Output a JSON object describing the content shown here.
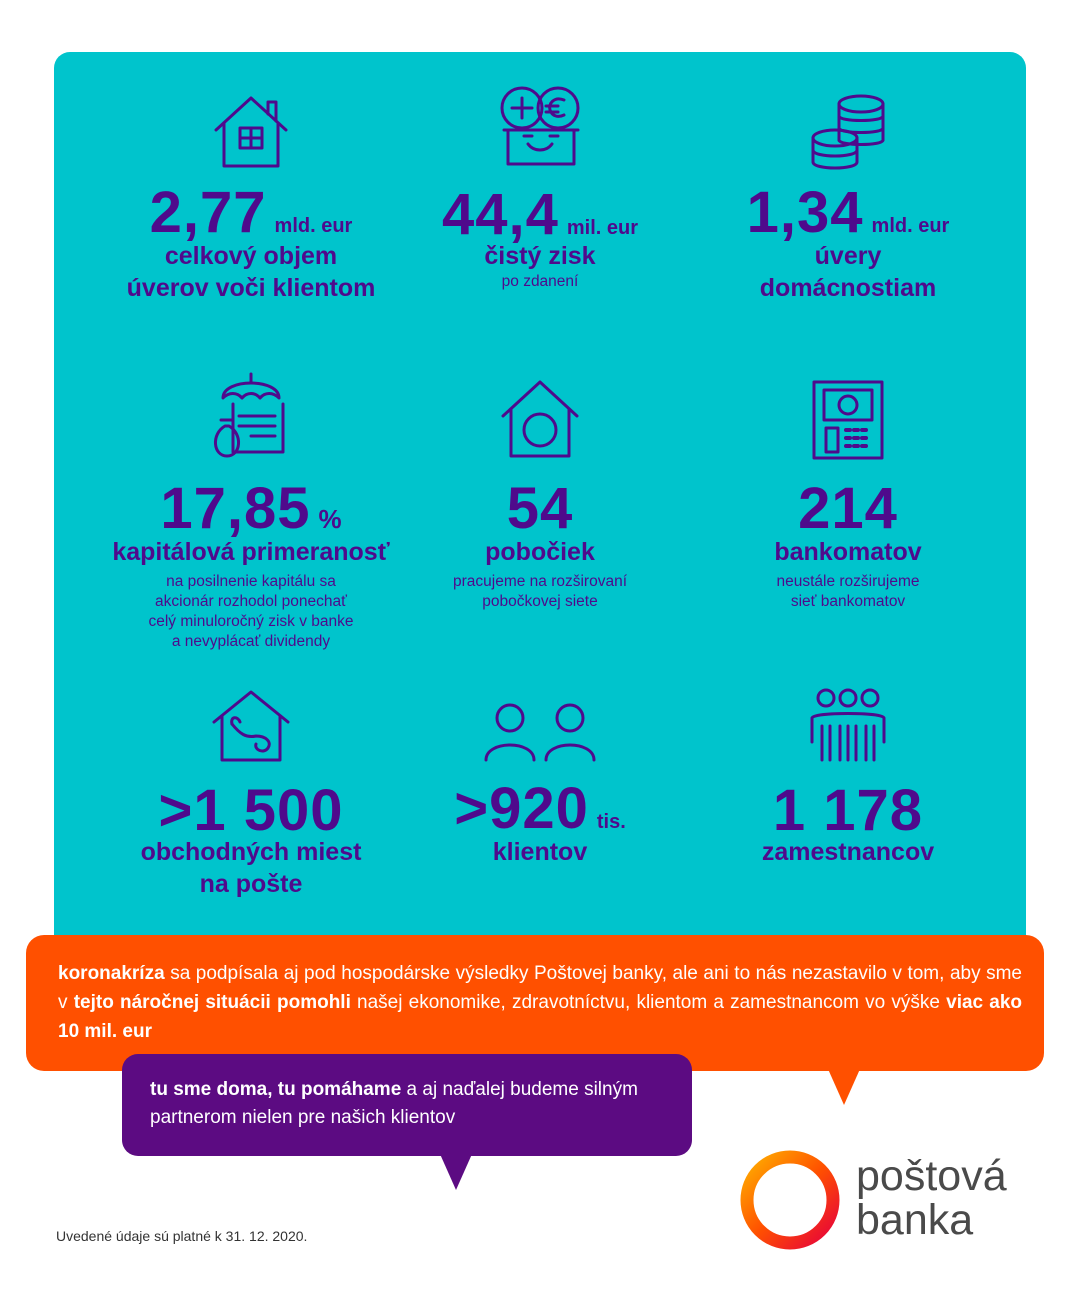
{
  "colors": {
    "panel": "#00c4cc",
    "accent": "#4f0a8c",
    "orange": "#ff5000",
    "purple": "#5c0b82"
  },
  "stats": [
    {
      "icon": "house-icon",
      "number": "2,77",
      "unit": "mld. eur",
      "label": [
        "celkový objem",
        "úverov voči klientom"
      ],
      "sub": []
    },
    {
      "icon": "money-box-icon",
      "number": "44,4",
      "unit": "mil. eur",
      "label": [
        "čistý zisk"
      ],
      "sub": [
        "po zdanení"
      ]
    },
    {
      "icon": "coins-icon",
      "number": "1,34",
      "unit": "mld. eur",
      "label": [
        "úvery",
        "domácnostiam"
      ],
      "sub": []
    },
    {
      "icon": "umbrella-document-icon",
      "number": "17,85",
      "unit": "%",
      "label": [
        "kapitálová primeranosť"
      ],
      "sub": [
        "na posilnenie kapitálu sa",
        "akcionár rozhodol ponechať",
        "celý minuloročný zisk v banke",
        "a nevyplácať dividendy"
      ]
    },
    {
      "icon": "branch-house-icon",
      "number": "54",
      "unit": "",
      "label": [
        "pobočiek"
      ],
      "sub": [
        "pracujeme na rozširovaní",
        "pobočkovej siete"
      ]
    },
    {
      "icon": "atm-icon",
      "number": "214",
      "unit": "",
      "label": [
        "bankomatov"
      ],
      "sub": [
        "neustále rozširujeme",
        "sieť bankomatov"
      ]
    },
    {
      "icon": "post-horn-house-icon",
      "number": ">1 500",
      "unit": "",
      "label": [
        "obchodných miest",
        "na pošte"
      ],
      "sub": []
    },
    {
      "icon": "clients-icon",
      "number": ">920",
      "unit": "tis.",
      "label": [
        "klientov"
      ],
      "sub": []
    },
    {
      "icon": "employees-icon",
      "number": "1 178",
      "unit": "",
      "label": [
        "zamestnancov"
      ],
      "sub": []
    }
  ],
  "orange_bubble": {
    "b1": "koronakríza",
    "t1": " sa podpísala aj pod hospodárske výsledky Poštovej banky, ale ani to nás nezastavilo v tom, aby sme v ",
    "b2": "tejto náročnej situácii pomohli",
    "t2": " našej ekonomike, zdravotníctvu, klientom a zamestnancom vo výške ",
    "b3": "viac ako 10 mil. eur"
  },
  "purple_bubble": {
    "b1": "tu sme doma, tu pomáhame",
    "t1": " a aj naďalej budeme silným partnerom nielen pre našich klientov"
  },
  "footnote": "Uvedené údaje sú platné k 31. 12. 2020.",
  "logo": {
    "line1": "poštová",
    "line2": "banka"
  }
}
